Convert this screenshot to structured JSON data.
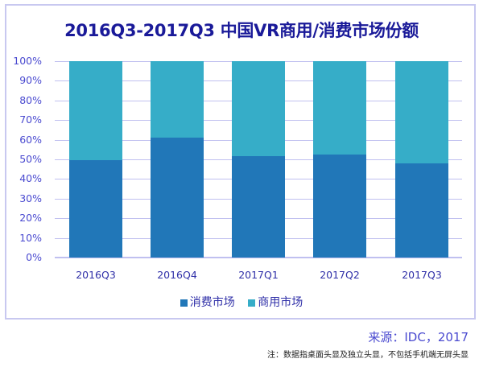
{
  "chart_data": {
    "type": "bar",
    "stacked": true,
    "percent": true,
    "title": "2016Q3-2017Q3 中国VR商用/消费市场份额",
    "categories": [
      "2016Q3",
      "2016Q4",
      "2017Q1",
      "2017Q2",
      "2017Q3"
    ],
    "series": [
      {
        "name": "消费市场",
        "color": "#2177b8",
        "values": [
          49.5,
          61,
          51.5,
          52.5,
          48
        ]
      },
      {
        "name": "商用市场",
        "color": "#36adc8",
        "values": [
          50.5,
          39,
          48.5,
          47.5,
          52
        ]
      }
    ],
    "xlabel": "",
    "ylabel": "",
    "ylim": [
      0,
      100
    ],
    "yticks": [
      "0%",
      "10%",
      "20%",
      "30%",
      "40%",
      "50%",
      "60%",
      "70%",
      "80%",
      "90%",
      "100%"
    ],
    "grid": true,
    "legend_position": "bottom"
  },
  "title": "2016Q3-2017Q3 中国VR商用/消费市场份额",
  "legend": [
    {
      "label": "消费市场",
      "color": "#2177b8"
    },
    {
      "label": "商用市场",
      "color": "#36adc8"
    }
  ],
  "source": "来源：IDC，2017",
  "note": "注：数据指桌面头显及独立头显，不包括手机端无屏头显"
}
